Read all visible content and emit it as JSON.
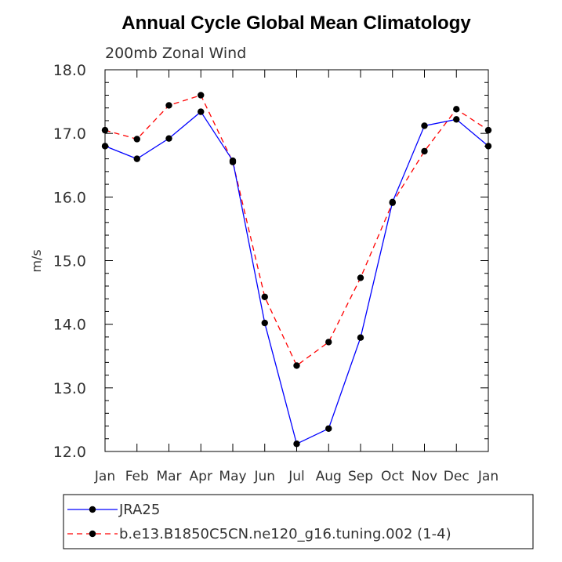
{
  "chart_data": {
    "type": "line",
    "title": "Annual Cycle Global Mean Climatology",
    "subtitle": "200mb Zonal Wind",
    "xlabel": "",
    "ylabel": "m/s",
    "categories": [
      "Jan",
      "Feb",
      "Mar",
      "Apr",
      "May",
      "Jun",
      "Jul",
      "Aug",
      "Sep",
      "Oct",
      "Nov",
      "Dec",
      "Jan"
    ],
    "ylim": [
      12.0,
      18.0
    ],
    "yticks": [
      "12.0",
      "13.0",
      "14.0",
      "15.0",
      "16.0",
      "17.0",
      "18.0"
    ],
    "grid": false,
    "legend_position": "bottom",
    "series": [
      {
        "name": "JRA25",
        "color": "#0000ff",
        "dash": "solid",
        "marker": "circle",
        "values": [
          16.8,
          16.6,
          16.92,
          17.34,
          16.57,
          14.02,
          12.12,
          12.36,
          13.79,
          15.92,
          17.12,
          17.22,
          16.8
        ]
      },
      {
        "name": "b.e13.B1850C5CN.ne120_g16.tuning.002 (1-4)",
        "color": "#ff0000",
        "dash": "dashed",
        "marker": "circle",
        "values": [
          17.05,
          16.91,
          17.44,
          17.6,
          16.55,
          14.43,
          13.35,
          13.72,
          14.73,
          15.91,
          16.72,
          17.38,
          17.05
        ]
      }
    ]
  }
}
